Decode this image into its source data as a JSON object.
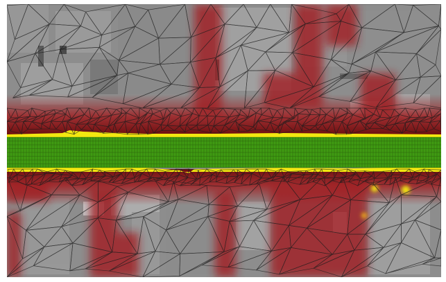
{
  "viewport": {
    "view": "mesh-overlay-top-down",
    "colors": {
      "ground_grey": "#8d8d8d",
      "ground_dark": "#6f6f6f",
      "roof_light": "#b8b8b8",
      "red_overlay": "#a11f22",
      "red_dark": "#6d0f10",
      "channel_green": "#3f9a12",
      "channel_edge_yellow": "#f2e810",
      "mesh_line": "#1d1d1d"
    },
    "layers": [
      {
        "name": "background-terrain",
        "visible": true
      },
      {
        "name": "depth-overlay-red",
        "visible": true
      },
      {
        "name": "channel-fill-green",
        "visible": true
      },
      {
        "name": "channel-edge-yellow",
        "visible": true
      },
      {
        "name": "triangular-mesh",
        "visible": true
      },
      {
        "name": "structured-channel-grid",
        "visible": true
      }
    ]
  }
}
